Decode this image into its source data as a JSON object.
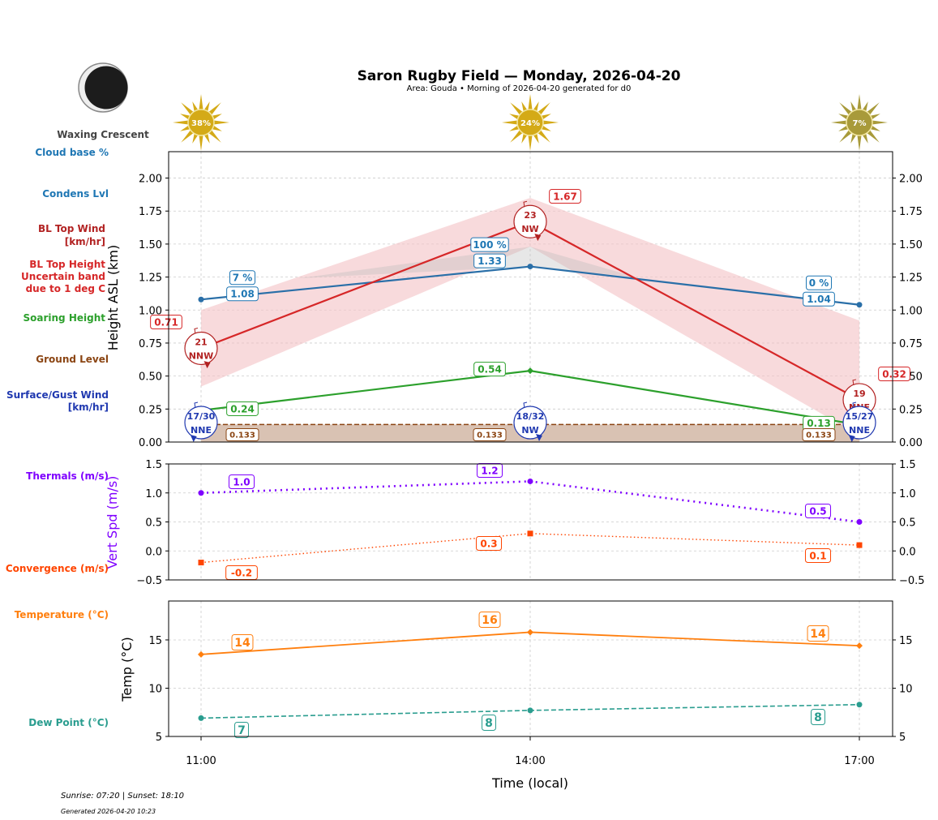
{
  "header": {
    "title": "Saron Rugby Field — Monday, 2026-04-20",
    "subtitle": "Area: Gouda • Morning of 2026-04-20 generated for d0",
    "moon_phase": "Waxing Crescent"
  },
  "footer": {
    "sun_times": "Sunrise: 07:20 | Sunset: 18:10",
    "generated": "Generated 2026-04-20 10:23"
  },
  "side_labels": {
    "cloud_base": "Cloud base %",
    "condens": "Condens Lvl",
    "bl_wind_1": "BL Top Wind",
    "bl_wind_2": "[km/hr]",
    "bl_height_1": "BL Top Height",
    "bl_height_2": "Uncertain band",
    "bl_height_3": "due to 1 deg C",
    "soaring": "Soaring Height",
    "ground": "Ground Level",
    "surface_1": "Surface/Gust Wind",
    "surface_2": "[km/hr]",
    "thermals": "Thermals (m/s)",
    "convergence": "Convergence (m/s)",
    "temperature": "Temperature (°C)",
    "dew": "Dew Point (°C)"
  },
  "colors": {
    "cloud": "#2a6fa8",
    "cloud_label": "#1f77b4",
    "bl": "#d62728",
    "bl_wind": "#b22222",
    "band": "#f4c2c5",
    "soaring": "#2ca02c",
    "ground": "#8b4513",
    "ground_fill": "#d9c2b3",
    "surface": "#2039b0",
    "thermals": "#7f00ff",
    "convergence": "#ff4500",
    "temperature": "#ff7f0e",
    "dew": "#2a9d8f",
    "sun": "#d4aa17"
  },
  "chart_data": [
    {
      "type": "line",
      "x": [
        "11:00",
        "14:00",
        "17:00"
      ],
      "ylabel": "Height ASL (km)",
      "ylim": [
        0,
        2.2
      ],
      "yticks": [
        "0.00",
        "0.25",
        "0.50",
        "0.75",
        "1.00",
        "1.25",
        "1.50",
        "1.75",
        "2.00"
      ],
      "grid": true,
      "cloud_cover": [
        "38%",
        "24%",
        "7%"
      ],
      "series": {
        "condens": {
          "values": [
            1.08,
            1.33,
            1.04
          ],
          "labels": [
            "1.08",
            "1.33",
            "1.04"
          ],
          "cloud_pct": [
            "7 %",
            "100 %",
            "0 %"
          ]
        },
        "bl_top": {
          "values": [
            0.71,
            1.67,
            0.32
          ],
          "labels": [
            "0.71",
            "1.67",
            "0.32"
          ],
          "band_low": [
            0.42,
            1.48,
            0.05
          ],
          "band_high": [
            1.0,
            1.85,
            0.92
          ]
        },
        "bl_wind": {
          "speed": [
            "21",
            "23",
            "19"
          ],
          "dir": [
            "NNW",
            "NW",
            "NNE"
          ]
        },
        "soaring": {
          "values": [
            0.24,
            0.54,
            0.13
          ],
          "labels": [
            "0.24",
            "0.54",
            "0.13"
          ]
        },
        "ground": {
          "value": 0.133,
          "labels": [
            "0.133",
            "0.133",
            "0.133"
          ]
        },
        "surface_wind": {
          "value": [
            "17/30",
            "18/32",
            "15/27"
          ],
          "dir": [
            "NNE",
            "NW",
            "NNE"
          ]
        }
      }
    },
    {
      "type": "line",
      "x": [
        "11:00",
        "14:00",
        "17:00"
      ],
      "ylabel": "Vert Spd (m/s)",
      "ylim": [
        -0.5,
        1.5
      ],
      "yticks": [
        "−0.5",
        "0.0",
        "0.5",
        "1.0",
        "1.5"
      ],
      "grid": true,
      "series": {
        "thermals": {
          "values": [
            1.0,
            1.2,
            0.5
          ],
          "labels": [
            "1.0",
            "1.2",
            "0.5"
          ]
        },
        "convergence": {
          "values": [
            -0.2,
            0.3,
            0.1
          ],
          "labels": [
            "-0.2",
            "0.3",
            "0.1"
          ]
        }
      }
    },
    {
      "type": "line",
      "x": [
        "11:00",
        "14:00",
        "17:00"
      ],
      "xlabel": "Time (local)",
      "ylabel": "Temp (°C)",
      "ylim": [
        5,
        19
      ],
      "yticks": [
        "5",
        "10",
        "15"
      ],
      "grid": true,
      "series": {
        "temperature": {
          "values": [
            13.5,
            15.8,
            14.4
          ],
          "labels": [
            "14",
            "16",
            "14"
          ]
        },
        "dew_point": {
          "values": [
            6.9,
            7.7,
            8.3
          ],
          "labels": [
            "7",
            "8",
            "8"
          ]
        }
      }
    }
  ]
}
